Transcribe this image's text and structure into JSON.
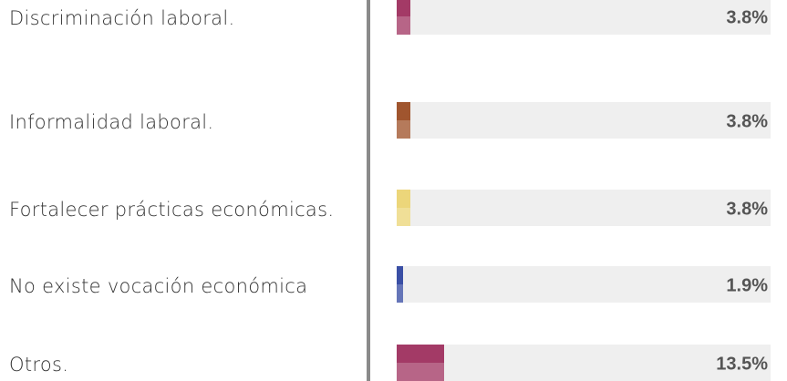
{
  "chart_data": {
    "type": "bar",
    "categories": [
      "Discriminación laboral.",
      "Informalidad laboral.",
      "Fortalecer prácticas económicas.",
      "No existe vocación económica",
      "Otros."
    ],
    "values": [
      3.8,
      3.8,
      3.8,
      1.9,
      13.5
    ],
    "value_labels": [
      "3.8%",
      "3.8%",
      "3.8%",
      "1.9%",
      "13.5%"
    ],
    "colors": [
      "#a33a66",
      "#a0552e",
      "#ecd67a",
      "#3a4fa5",
      "#a33a66"
    ]
  }
}
